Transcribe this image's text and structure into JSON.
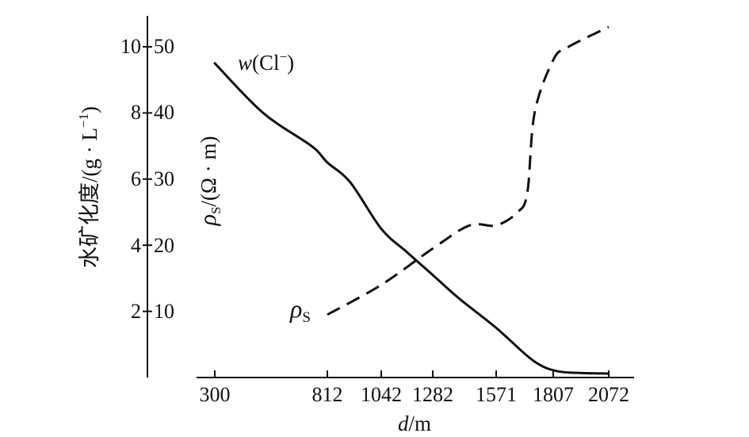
{
  "chart_data": {
    "type": "line",
    "xlabel": {
      "var": "d",
      "unit": "/m"
    },
    "x_ticks": [
      "300",
      "812",
      "1042",
      "1282",
      "1571",
      "1807",
      "2072"
    ],
    "y_left_label": "水矿化度/(g · L",
    "y_left_label_exp": "−1",
    "y_left_label_end": ")",
    "y_left_ticks": [
      "2",
      "4",
      "6",
      "8",
      "10"
    ],
    "y_left_range": [
      0,
      10
    ],
    "y_right_label": "/(Ω · m)",
    "y_right_ticks": [
      "10",
      "20",
      "30",
      "40",
      "50"
    ],
    "y_right_range": [
      0,
      50
    ],
    "series": [
      {
        "name": "w(Cl−)",
        "label_var": "w",
        "label_text": "(Cl",
        "label_sup": "−",
        "label_close": ")",
        "axis": "left",
        "style": "solid",
        "x": [
          300,
          520,
          740,
          812,
          910,
          1042,
          1160,
          1282,
          1400,
          1571,
          1700,
          1760,
          1807,
          1880,
          2072
        ],
        "y": [
          9.5,
          8.0,
          7.0,
          6.5,
          5.9,
          4.5,
          3.8,
          3.1,
          2.4,
          1.5,
          0.65,
          0.35,
          0.22,
          0.15,
          0.12
        ]
      },
      {
        "name": "ρS",
        "label_var": "ρ",
        "label_sub": "S",
        "axis": "right",
        "style": "dashed",
        "x": [
          812,
          1042,
          1282,
          1450,
          1571,
          1660,
          1700,
          1730,
          1807,
          1880,
          2072
        ],
        "y": [
          9.5,
          14,
          19.5,
          23,
          23,
          25,
          28,
          40,
          48,
          50,
          53
        ]
      }
    ]
  }
}
